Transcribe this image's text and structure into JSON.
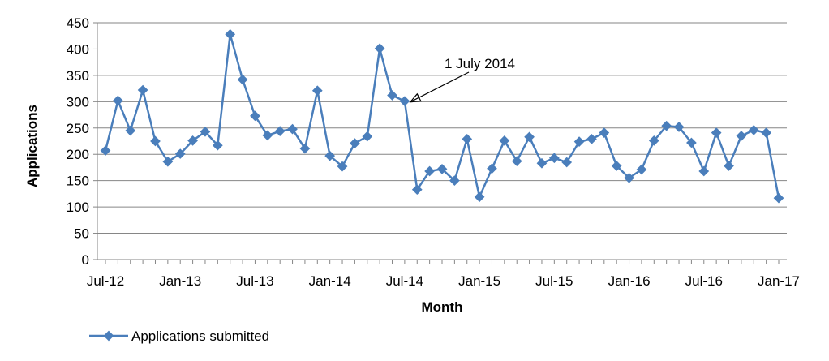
{
  "chart_data": {
    "type": "line",
    "xlabel": "Month",
    "ylabel": "Applications",
    "ylim": [
      0,
      450
    ],
    "yticks": [
      "0",
      "50",
      "100",
      "150",
      "200",
      "250",
      "300",
      "350",
      "400",
      "450"
    ],
    "xticks": [
      "Jul-12",
      "Jan-13",
      "Jul-13",
      "Jan-14",
      "Jul-14",
      "Jan-15",
      "Jul-15",
      "Jan-16",
      "Jul-16",
      "Jan-17"
    ],
    "grid": "horizontal",
    "legend_position": "bottom-left",
    "annotation": {
      "text": "1 July 2014",
      "points_to": "Jul-14"
    },
    "series": [
      {
        "name": "Applications submitted",
        "color": "#4a7ebb",
        "x": [
          "Jul-12",
          "Aug-12",
          "Sep-12",
          "Oct-12",
          "Nov-12",
          "Dec-12",
          "Jan-13",
          "Feb-13",
          "Mar-13",
          "Apr-13",
          "May-13",
          "Jun-13",
          "Jul-13",
          "Aug-13",
          "Sep-13",
          "Oct-13",
          "Nov-13",
          "Dec-13",
          "Jan-14",
          "Feb-14",
          "Mar-14",
          "Apr-14",
          "May-14",
          "Jun-14",
          "Jul-14",
          "Aug-14",
          "Sep-14",
          "Oct-14",
          "Nov-14",
          "Dec-14",
          "Jan-15",
          "Feb-15",
          "Mar-15",
          "Apr-15",
          "May-15",
          "Jun-15",
          "Jul-15",
          "Aug-15",
          "Sep-15",
          "Oct-15",
          "Nov-15",
          "Dec-15",
          "Jan-16",
          "Feb-16",
          "Mar-16",
          "Apr-16",
          "May-16",
          "Jun-16",
          "Jul-16",
          "Aug-16",
          "Sep-16",
          "Oct-16",
          "Nov-16",
          "Dec-16",
          "Jan-17"
        ],
        "values": [
          207,
          302,
          245,
          322,
          225,
          186,
          201,
          226,
          243,
          217,
          428,
          342,
          273,
          236,
          244,
          248,
          211,
          321,
          197,
          177,
          221,
          234,
          401,
          312,
          301,
          133,
          168,
          172,
          150,
          229,
          119,
          173,
          226,
          187,
          233,
          183,
          193,
          185,
          224,
          229,
          241,
          178,
          155,
          171,
          226,
          254,
          252,
          222,
          168,
          241,
          178,
          235,
          246,
          241,
          117
        ]
      }
    ]
  }
}
